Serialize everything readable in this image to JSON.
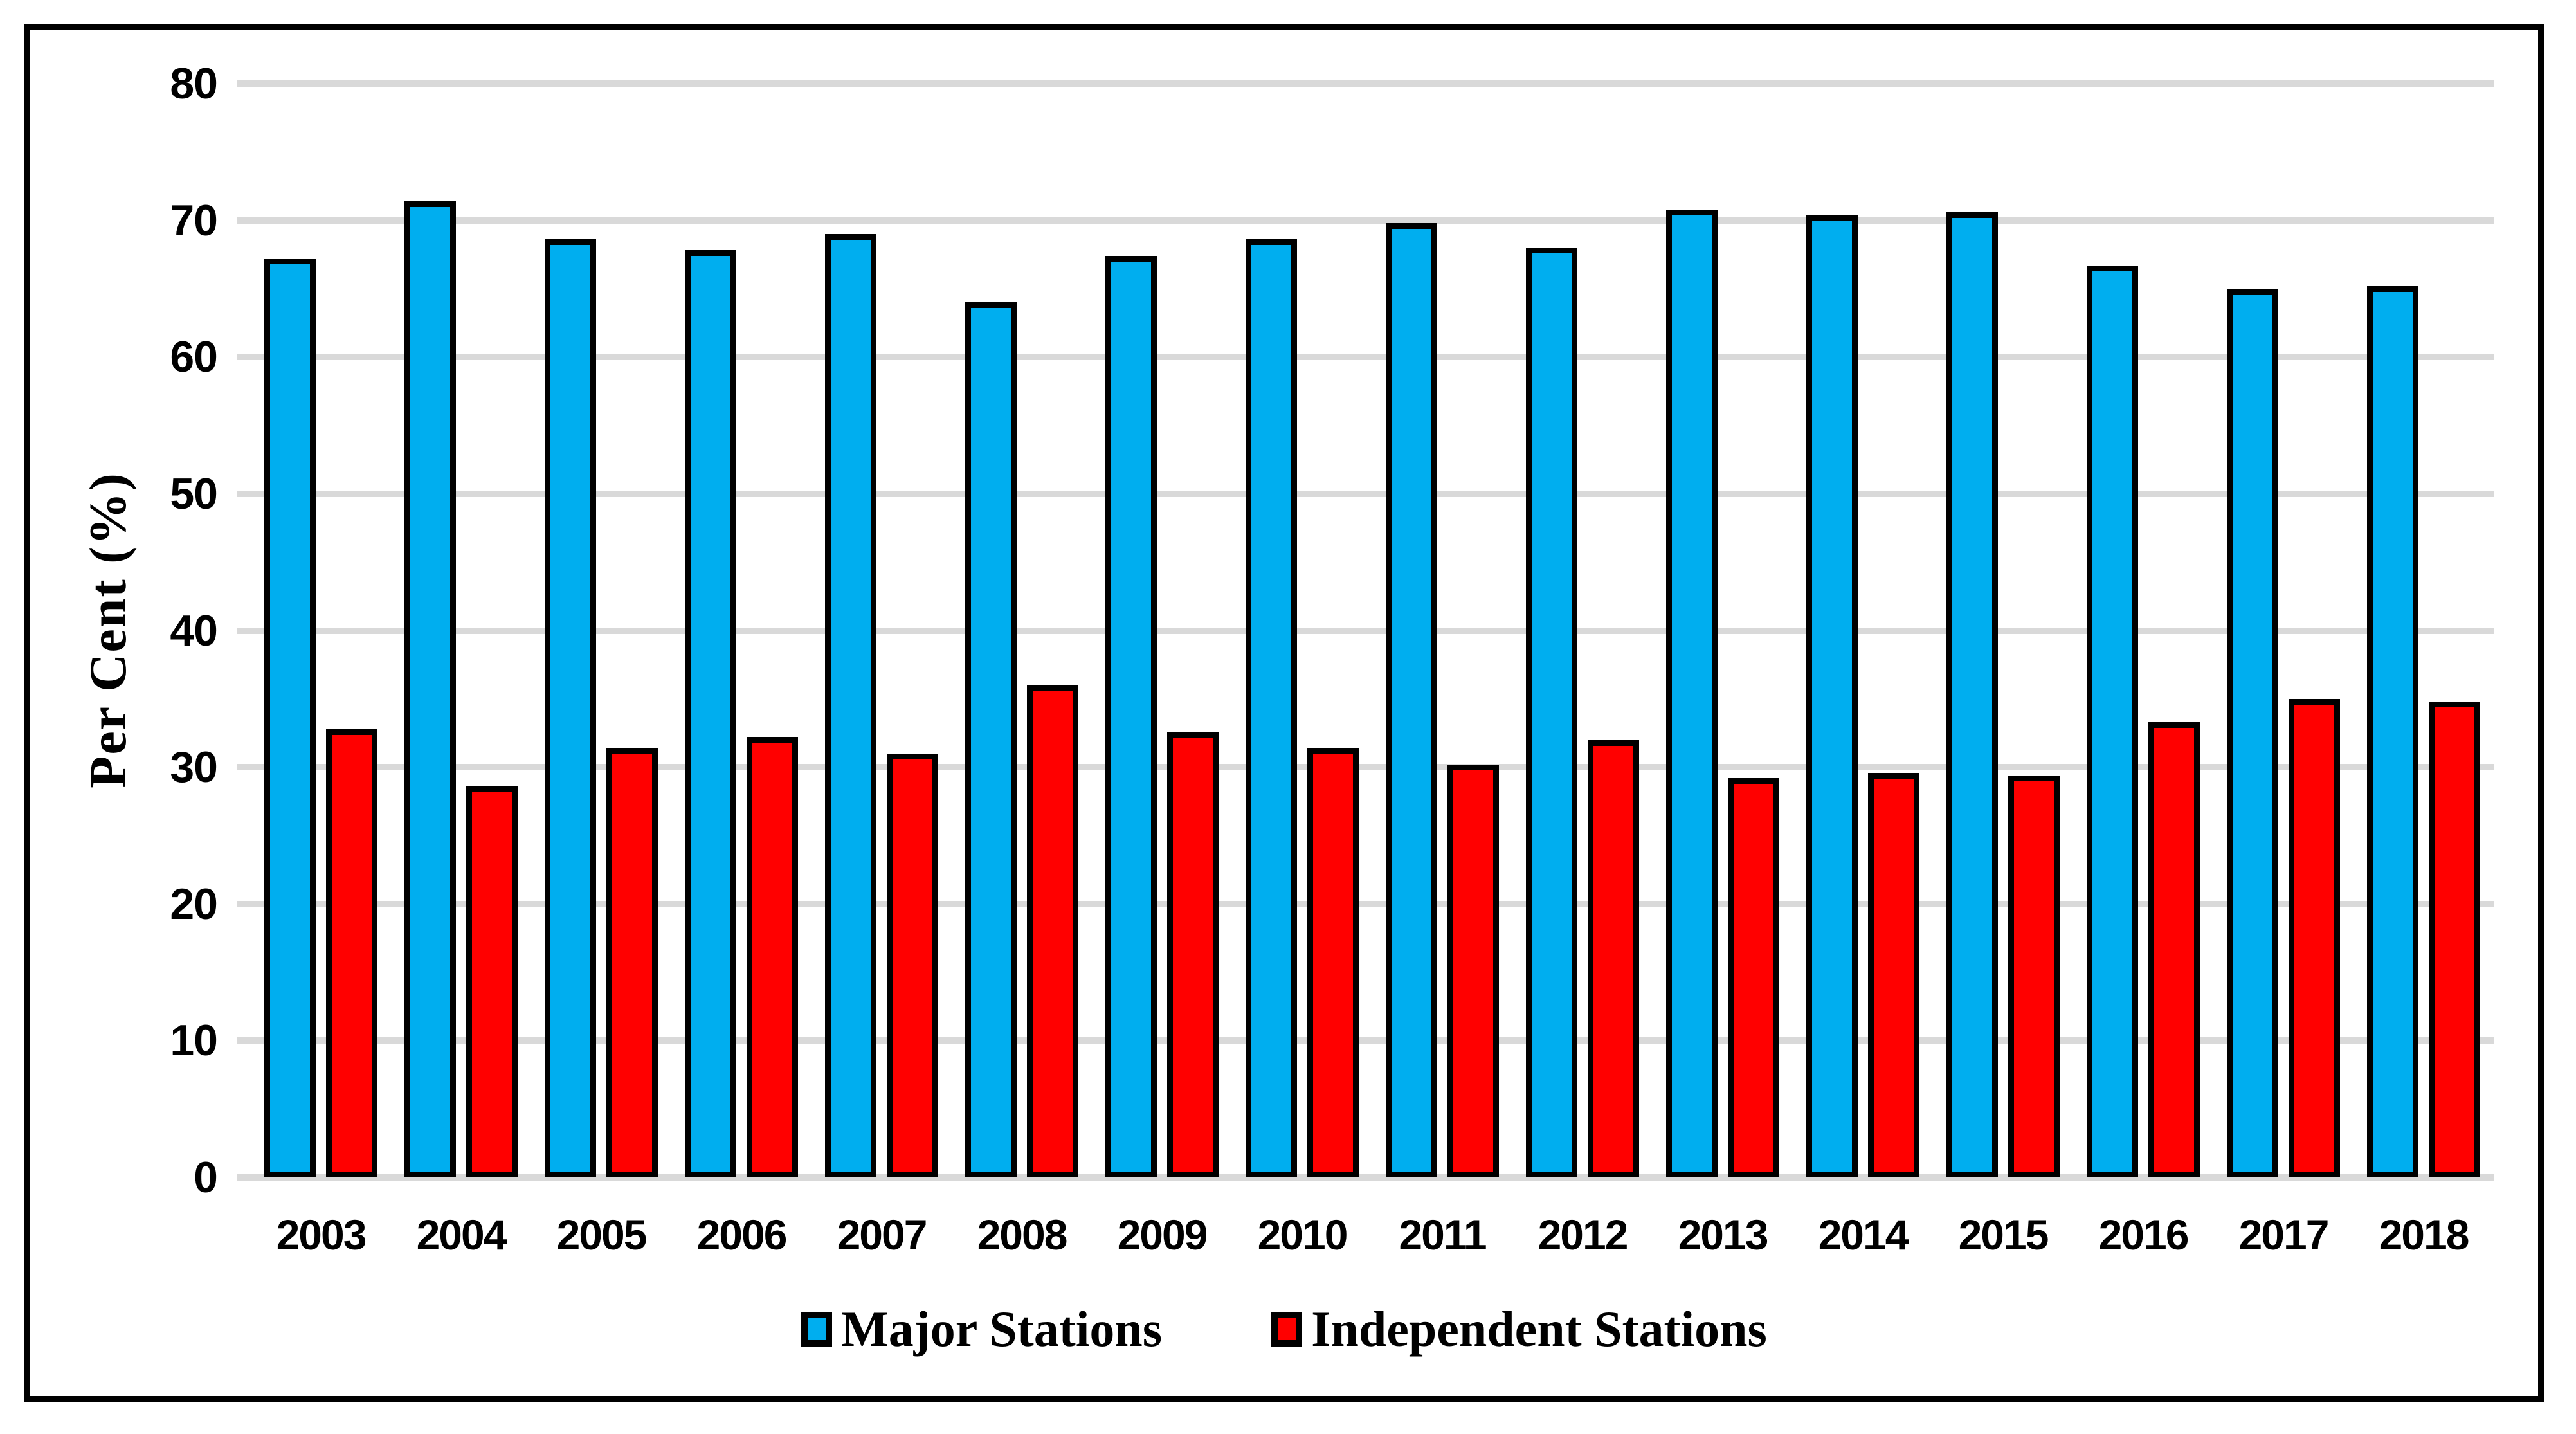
{
  "figure": {
    "background_color": "#ffffff",
    "border_color": "#000000"
  },
  "chart_data": {
    "type": "bar",
    "title": "",
    "xlabel": "",
    "ylabel": "Per Cent (%)",
    "categories": [
      "2003",
      "2004",
      "2005",
      "2006",
      "2007",
      "2008",
      "2009",
      "2010",
      "2011",
      "2012",
      "2013",
      "2014",
      "2015",
      "2016",
      "2017",
      "2018"
    ],
    "series": [
      {
        "name": "Major Stations",
        "color": "#00AEEF",
        "values": [
          67.2,
          71.4,
          68.6,
          67.8,
          69.0,
          64.0,
          67.4,
          68.6,
          69.8,
          68.0,
          70.8,
          70.4,
          70.6,
          66.7,
          65.0,
          65.2
        ]
      },
      {
        "name": "Independent Stations",
        "color": "#FF0000",
        "values": [
          32.8,
          28.6,
          31.4,
          32.2,
          31.0,
          36.0,
          32.6,
          31.4,
          30.2,
          32.0,
          29.2,
          29.6,
          29.4,
          33.3,
          35.0,
          34.8
        ]
      }
    ],
    "ylim": [
      0,
      80
    ],
    "yticks": [
      0,
      10,
      20,
      30,
      40,
      50,
      60,
      70,
      80
    ],
    "grid": true,
    "gridline_color": "#D9D9D9",
    "bar_border_color": "#000000",
    "legend_position": "bottom"
  }
}
